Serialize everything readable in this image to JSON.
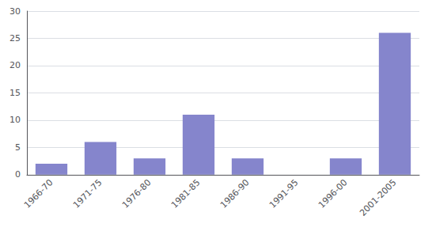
{
  "chart_data": {
    "type": "bar",
    "categories": [
      "1966-70",
      "1971-75",
      "1976-80",
      "1981-85",
      "1986-90",
      "1991-95",
      "1996-00",
      "2001-2005"
    ],
    "values": [
      2,
      6,
      3,
      11,
      3,
      0,
      3,
      26
    ],
    "color": "#8585cc",
    "ylim": [
      0,
      30
    ],
    "yticks": [
      0,
      5,
      10,
      15,
      20,
      25,
      30
    ],
    "grid": true
  }
}
